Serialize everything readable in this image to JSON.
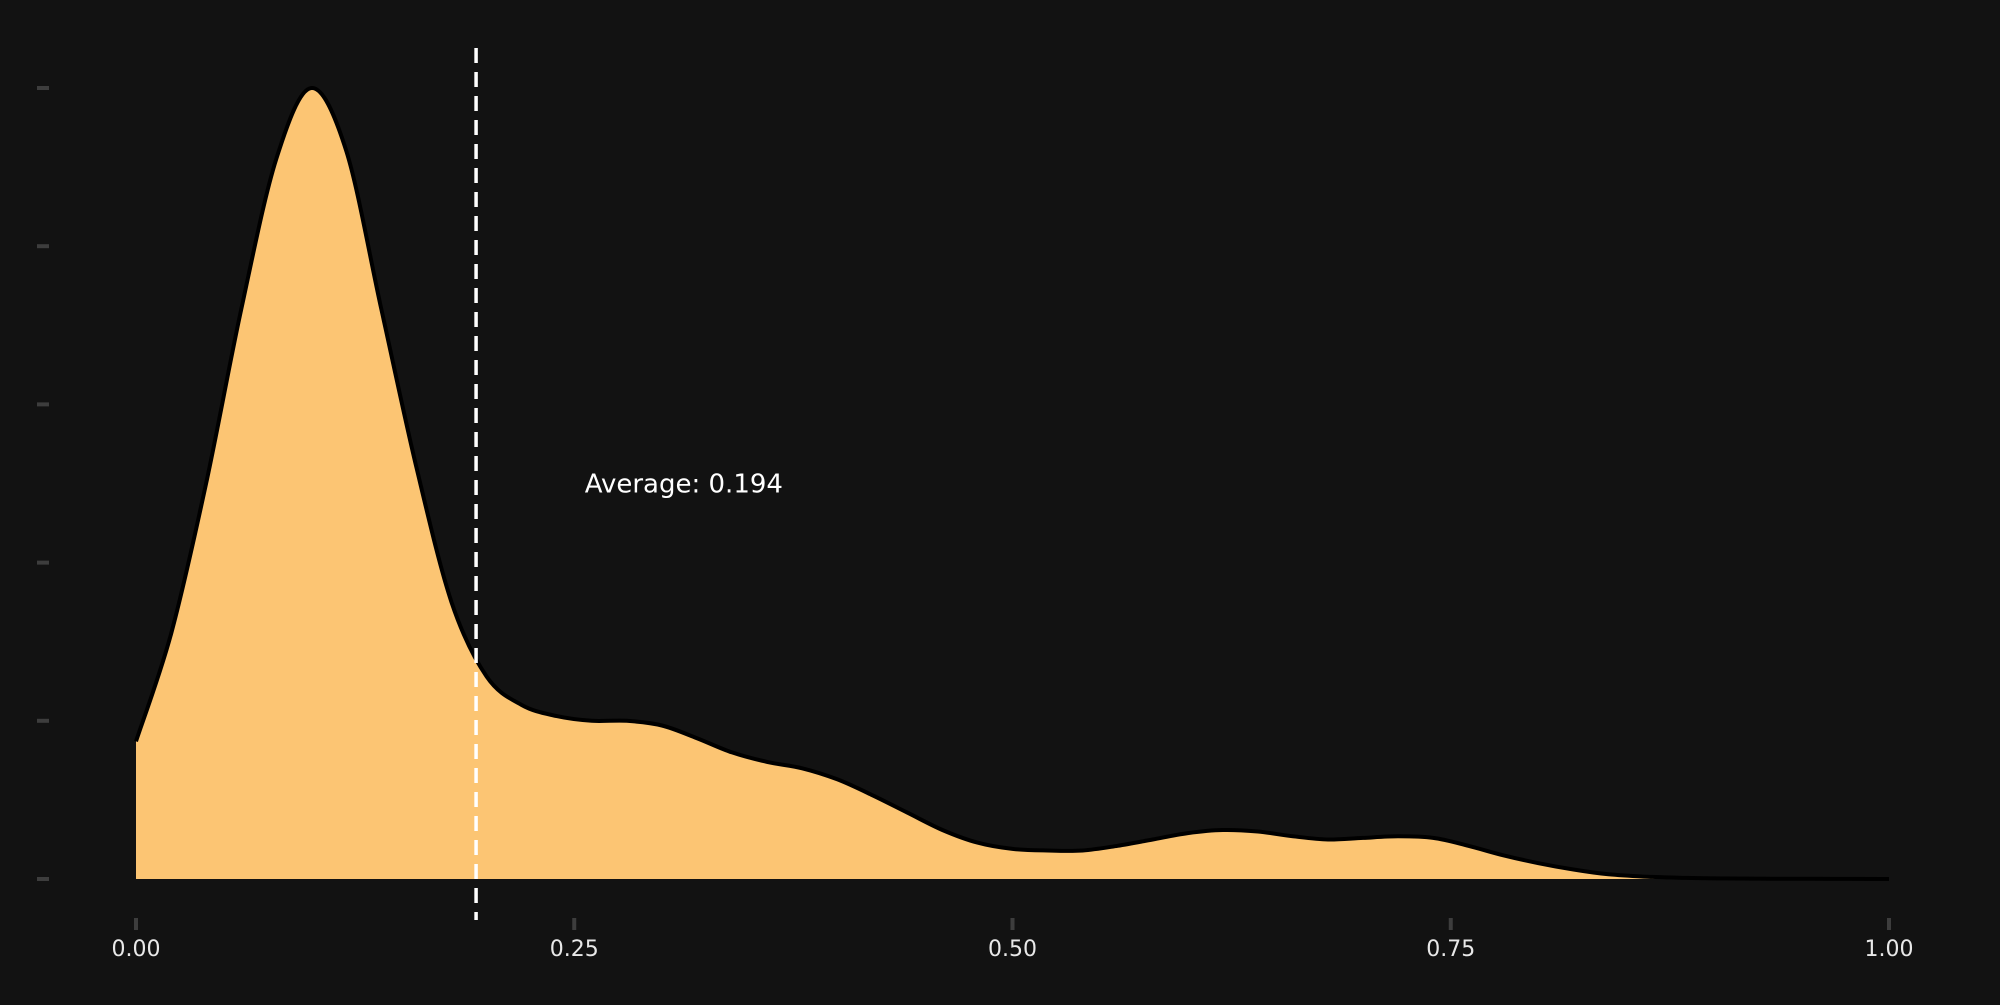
{
  "chart_data": {
    "type": "area",
    "title": "",
    "xlabel": "",
    "ylabel": "",
    "xlim": [
      0,
      1
    ],
    "ylim": [
      0,
      5
    ],
    "x_ticks": [
      {
        "value": 0.0,
        "label": "0.00"
      },
      {
        "value": 0.25,
        "label": "0.25"
      },
      {
        "value": 0.5,
        "label": "0.50"
      },
      {
        "value": 0.75,
        "label": "0.75"
      },
      {
        "value": 1.0,
        "label": "1.00"
      }
    ],
    "y_ticks": [
      0,
      1,
      2,
      3,
      4,
      5
    ],
    "y_tick_labels_shown": false,
    "grid": false,
    "fill_color": "#fcc573",
    "line_color": "#000000",
    "background_color": "#121212",
    "reference_line": {
      "x": 0.194,
      "color": "#ffffff",
      "style": "dashed"
    },
    "annotation": {
      "text": "Average: 0.194",
      "x": 0.24,
      "y": 2.5
    },
    "series": [
      {
        "x": [
          0.0,
          0.02,
          0.04,
          0.06,
          0.08,
          0.1,
          0.12,
          0.14,
          0.16,
          0.18,
          0.2,
          0.22,
          0.24,
          0.26,
          0.28,
          0.3,
          0.32,
          0.34,
          0.36,
          0.38,
          0.4,
          0.42,
          0.44,
          0.46,
          0.48,
          0.5,
          0.52,
          0.54,
          0.56,
          0.58,
          0.6,
          0.62,
          0.64,
          0.66,
          0.68,
          0.7,
          0.72,
          0.74,
          0.76,
          0.78,
          0.8,
          0.82,
          0.84,
          0.86,
          0.88,
          0.9,
          0.95,
          1.0
        ],
        "y": [
          0.87,
          1.55,
          2.5,
          3.6,
          4.55,
          5.0,
          4.6,
          3.6,
          2.6,
          1.75,
          1.28,
          1.1,
          1.03,
          1.0,
          1.0,
          0.97,
          0.89,
          0.8,
          0.74,
          0.7,
          0.63,
          0.53,
          0.42,
          0.31,
          0.23,
          0.19,
          0.18,
          0.18,
          0.21,
          0.25,
          0.29,
          0.31,
          0.3,
          0.27,
          0.25,
          0.26,
          0.27,
          0.26,
          0.21,
          0.15,
          0.1,
          0.06,
          0.03,
          0.015,
          0.008,
          0.004,
          0.001,
          0.0
        ]
      }
    ]
  }
}
